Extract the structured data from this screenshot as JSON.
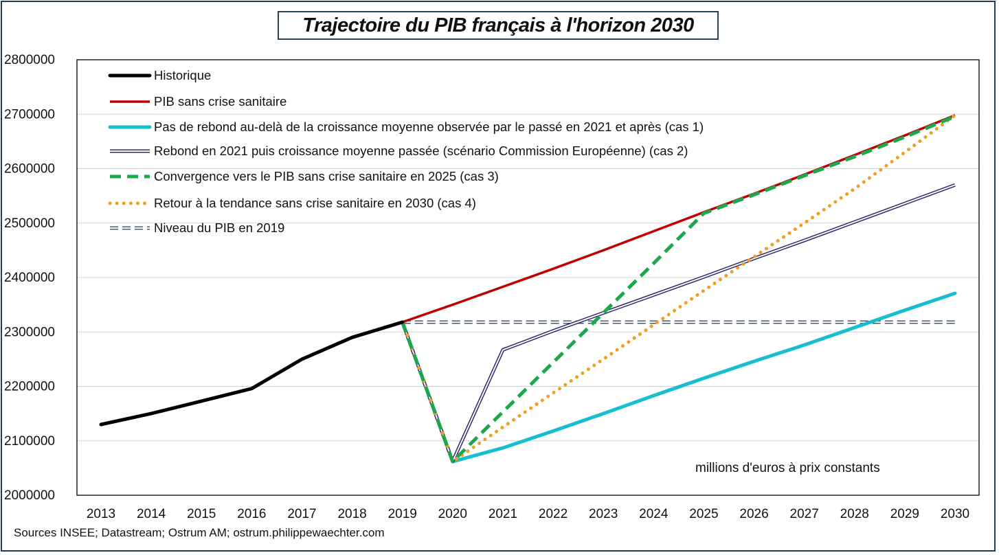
{
  "chart_data": {
    "type": "line",
    "title": "Trajectoire du PIB  français à l'horizon 2030",
    "xlabel": "",
    "ylabel": "",
    "ylim": [
      2000000,
      2800000
    ],
    "yticks": [
      2000000,
      2100000,
      2200000,
      2300000,
      2400000,
      2500000,
      2600000,
      2700000,
      2800000
    ],
    "ytick_labels": [
      "2000000",
      "2100000",
      "2200000",
      "2300000",
      "2400000",
      "2500000",
      "2600000",
      "2700000",
      "2800000"
    ],
    "categories": [
      "2013",
      "2014",
      "2015",
      "2016",
      "2017",
      "2018",
      "2019",
      "2020",
      "2021",
      "2022",
      "2023",
      "2024",
      "2025",
      "2026",
      "2027",
      "2028",
      "2029",
      "2030"
    ],
    "grid": true,
    "legend_position": "top-left",
    "annotation": "millions d'euros à prix constants",
    "source": "Sources INSEE; Datastream; Ostrum AM;  ostrum.philippewaechter.com",
    "series": [
      {
        "name": "Historique",
        "color": "#000000",
        "style": "solid-thick",
        "x": [
          "2013",
          "2014",
          "2015",
          "2016",
          "2017",
          "2018",
          "2019"
        ],
        "values": [
          2130000,
          2150000,
          2173000,
          2196000,
          2250000,
          2290000,
          2318000
        ]
      },
      {
        "name": "PIB sans crise sanitaire",
        "color": "#c00000",
        "style": "solid",
        "x": [
          "2019",
          "2020",
          "2021",
          "2022",
          "2023",
          "2024",
          "2025",
          "2026",
          "2027",
          "2028",
          "2029",
          "2030"
        ],
        "values": [
          2318000,
          2350000,
          2383000,
          2416000,
          2450000,
          2485000,
          2520000,
          2554000,
          2589000,
          2625000,
          2661000,
          2698000
        ]
      },
      {
        "name": "Pas de rebond au-delà de la croissance moyenne observée par le passé en 2021 et après (cas 1)",
        "color": "#17becf",
        "style": "solid-thick",
        "x": [
          "2019",
          "2020",
          "2021",
          "2022",
          "2023",
          "2024",
          "2025",
          "2026",
          "2027",
          "2028",
          "2029",
          "2030"
        ],
        "values": [
          2318000,
          2062000,
          2087000,
          2118000,
          2150000,
          2183000,
          2215000,
          2246000,
          2276000,
          2308000,
          2340000,
          2371000
        ]
      },
      {
        "name": "Rebond en 2021 puis croissance moyenne passée (scénario Commission Européenne) (cas 2)",
        "color": "#2e2a6b",
        "style": "double",
        "x": [
          "2019",
          "2020",
          "2021",
          "2022",
          "2023",
          "2024",
          "2025",
          "2026",
          "2027",
          "2028",
          "2029",
          "2030"
        ],
        "values": [
          2318000,
          2062000,
          2267000,
          2302000,
          2335000,
          2368000,
          2401000,
          2435000,
          2468000,
          2502000,
          2536000,
          2570000
        ]
      },
      {
        "name": "Convergence vers le PIB sans crise sanitaire en 2025 (cas 3)",
        "color": "#1aa84a",
        "style": "dashed",
        "x": [
          "2019",
          "2020",
          "2021",
          "2022",
          "2023",
          "2024",
          "2025",
          "2026",
          "2027",
          "2028",
          "2029",
          "2030"
        ],
        "values": [
          2318000,
          2062000,
          2153000,
          2244000,
          2335000,
          2426000,
          2518000,
          2552000,
          2587000,
          2622000,
          2658000,
          2696000
        ]
      },
      {
        "name": "Retour à la tendance sans crise sanitaire en 2030 (cas 4)",
        "color": "#f0a020",
        "style": "dotted",
        "x": [
          "2019",
          "2020",
          "2021",
          "2022",
          "2023",
          "2024",
          "2025",
          "2026",
          "2027",
          "2028",
          "2029",
          "2030"
        ],
        "values": [
          2318000,
          2062000,
          2125000,
          2188000,
          2250000,
          2313000,
          2376000,
          2438000,
          2500000,
          2563000,
          2630000,
          2698000
        ]
      },
      {
        "name": "Niveau du PIB en 2019",
        "color": "#4a5a6e",
        "style": "double-dashed",
        "x": [
          "2019",
          "2030"
        ],
        "values": [
          2318000,
          2318000
        ]
      }
    ]
  }
}
